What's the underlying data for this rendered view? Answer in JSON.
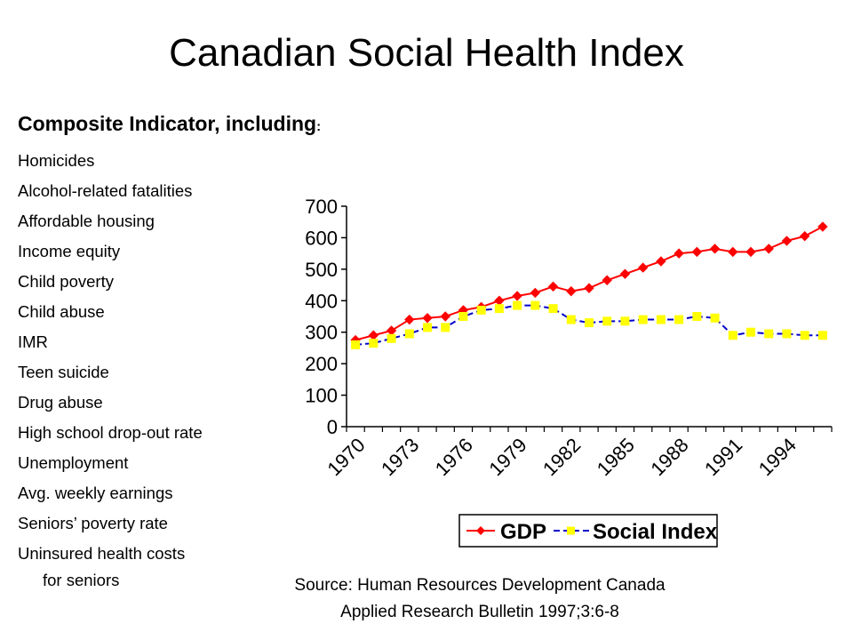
{
  "title": "Canadian Social Health Index",
  "subheading": {
    "text": "Composite Indicator, including",
    "colon": ":"
  },
  "indicators": [
    "Homicides",
    "Alcohol-related fatalities",
    "Affordable housing",
    "Income equity",
    "Child poverty",
    "Child abuse",
    "IMR",
    "Teen suicide",
    "Drug abuse",
    "High school drop-out rate",
    "Unemployment",
    "Avg. weekly earnings",
    "Seniors’ poverty rate",
    "Uninsured health costs",
    "for seniors"
  ],
  "source": {
    "line1": "Source: Human Resources Development Canada",
    "line2": "Applied Research Bulletin 1997;3:6-8"
  },
  "chart_data": {
    "type": "line",
    "title": "",
    "xlabel": "",
    "ylabel": "",
    "x": [
      1970,
      1971,
      1972,
      1973,
      1974,
      1975,
      1976,
      1977,
      1978,
      1979,
      1980,
      1981,
      1982,
      1983,
      1984,
      1985,
      1986,
      1987,
      1988,
      1989,
      1990,
      1991,
      1992,
      1993,
      1994,
      1995,
      1996
    ],
    "x_tick_labels": [
      "1970",
      "1973",
      "1976",
      "1979",
      "1982",
      "1985",
      "1988",
      "1991",
      "1994"
    ],
    "y_tick_labels": [
      "0",
      "100",
      "200",
      "300",
      "400",
      "500",
      "600",
      "700"
    ],
    "ylim": [
      0,
      700
    ],
    "grid": false,
    "legend_position": "bottom",
    "series": [
      {
        "name": "GDP",
        "color": "#ff0000",
        "marker": "diamond",
        "values": [
          275,
          290,
          305,
          340,
          345,
          350,
          370,
          380,
          400,
          415,
          425,
          445,
          430,
          440,
          465,
          485,
          505,
          525,
          550,
          555,
          565,
          555,
          555,
          565,
          590,
          605,
          635
        ]
      },
      {
        "name": "Social Index",
        "color": "#0000cc",
        "marker_color": "#ffff00",
        "marker": "square",
        "values": [
          260,
          265,
          280,
          295,
          315,
          315,
          350,
          370,
          375,
          385,
          385,
          375,
          340,
          330,
          335,
          335,
          340,
          340,
          340,
          350,
          345,
          290,
          300,
          295,
          295,
          290,
          290
        ]
      }
    ]
  }
}
